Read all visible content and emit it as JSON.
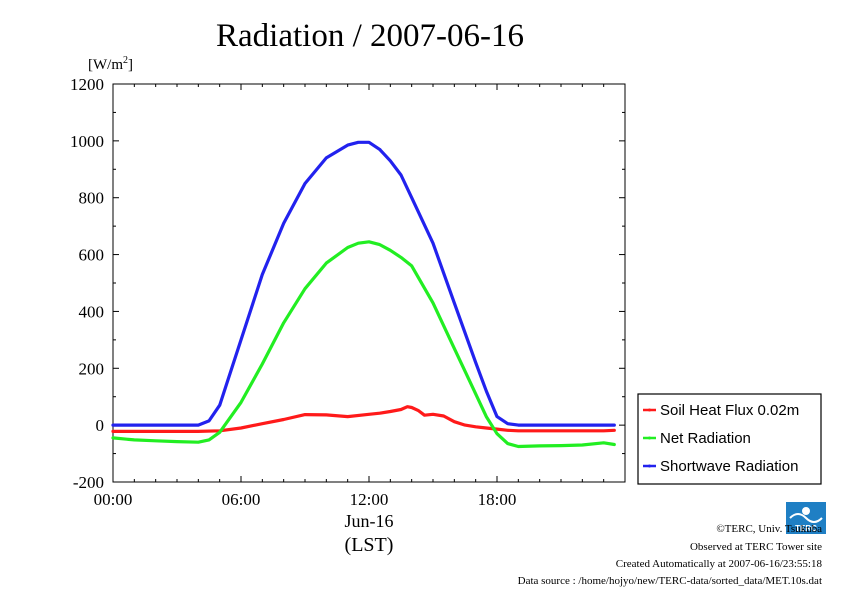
{
  "chart_data": {
    "type": "line",
    "title": "Radiation / 2007-06-16",
    "ylabel": "[W/m",
    "ylabel_sup": "2",
    "ylabel_close": "]",
    "ylim": [
      -200,
      1200
    ],
    "yticks": [
      -200,
      0,
      200,
      400,
      600,
      800,
      1000,
      1200
    ],
    "ytick_labels": [
      "-200",
      "0",
      "200",
      "400",
      "600",
      "800",
      "1000",
      "1200"
    ],
    "xlim": [
      0,
      24
    ],
    "xticks": [
      0,
      6,
      12,
      18
    ],
    "xtick_labels": [
      "00:00",
      "06:00",
      "12:00",
      "18:00"
    ],
    "xlabel_date": "Jun-16",
    "xlabel": "(LST)",
    "legend_position": "right",
    "grid": false,
    "series": [
      {
        "name": "Soil Heat Flux 0.02m",
        "color": "#ff1a1a",
        "x": [
          0,
          1,
          2,
          3,
          4,
          5,
          6,
          7,
          8,
          9,
          10,
          11,
          12,
          12.5,
          13,
          13.5,
          13.8,
          14,
          14.3,
          14.6,
          15,
          15.5,
          16,
          16.5,
          17,
          17.5,
          18,
          18.5,
          19,
          20,
          21,
          22,
          23,
          23.5
        ],
        "y": [
          -22,
          -22,
          -22,
          -22,
          -22,
          -20,
          -10,
          5,
          20,
          37,
          36,
          30,
          38,
          42,
          48,
          55,
          65,
          62,
          52,
          35,
          38,
          32,
          12,
          0,
          -6,
          -10,
          -14,
          -18,
          -20,
          -20,
          -20,
          -20,
          -20,
          -18
        ]
      },
      {
        "name": "Net Radiation",
        "color": "#22ee22",
        "x": [
          0,
          1,
          2,
          3,
          4,
          4.5,
          5,
          6,
          7,
          8,
          9,
          10,
          11,
          11.5,
          12,
          12.5,
          13,
          13.5,
          14,
          15,
          16,
          17,
          17.5,
          18,
          18.5,
          19,
          20,
          21,
          22,
          23,
          23.5
        ],
        "y": [
          -45,
          -52,
          -55,
          -58,
          -60,
          -52,
          -25,
          80,
          215,
          360,
          480,
          570,
          625,
          640,
          645,
          635,
          615,
          590,
          560,
          430,
          270,
          110,
          30,
          -30,
          -65,
          -75,
          -73,
          -72,
          -70,
          -62,
          -68
        ]
      },
      {
        "name": "Shortwave Radiation",
        "color": "#2222ee",
        "x": [
          0,
          1,
          2,
          3,
          4,
          4.5,
          5,
          6,
          7,
          8,
          9,
          10,
          11,
          11.5,
          12,
          12.5,
          13,
          13.5,
          14,
          15,
          16,
          17,
          17.5,
          18,
          18.5,
          19,
          20,
          21,
          22,
          23,
          23.5
        ],
        "y": [
          0,
          0,
          0,
          0,
          0,
          15,
          70,
          300,
          530,
          710,
          850,
          940,
          985,
          995,
          995,
          970,
          930,
          880,
          800,
          640,
          430,
          220,
          120,
          30,
          5,
          0,
          0,
          0,
          0,
          0,
          0
        ]
      }
    ]
  },
  "footer": {
    "copyright": "©TERC, Univ. Tsukuba",
    "observed": "Observed at TERC Tower site",
    "created": "Created Automatically at 2007-06-16/23:55:18",
    "source": "Data source : /home/hojyo/new/TERC-data/sorted_data/MET.10s.dat",
    "logo_text": "TERC"
  }
}
